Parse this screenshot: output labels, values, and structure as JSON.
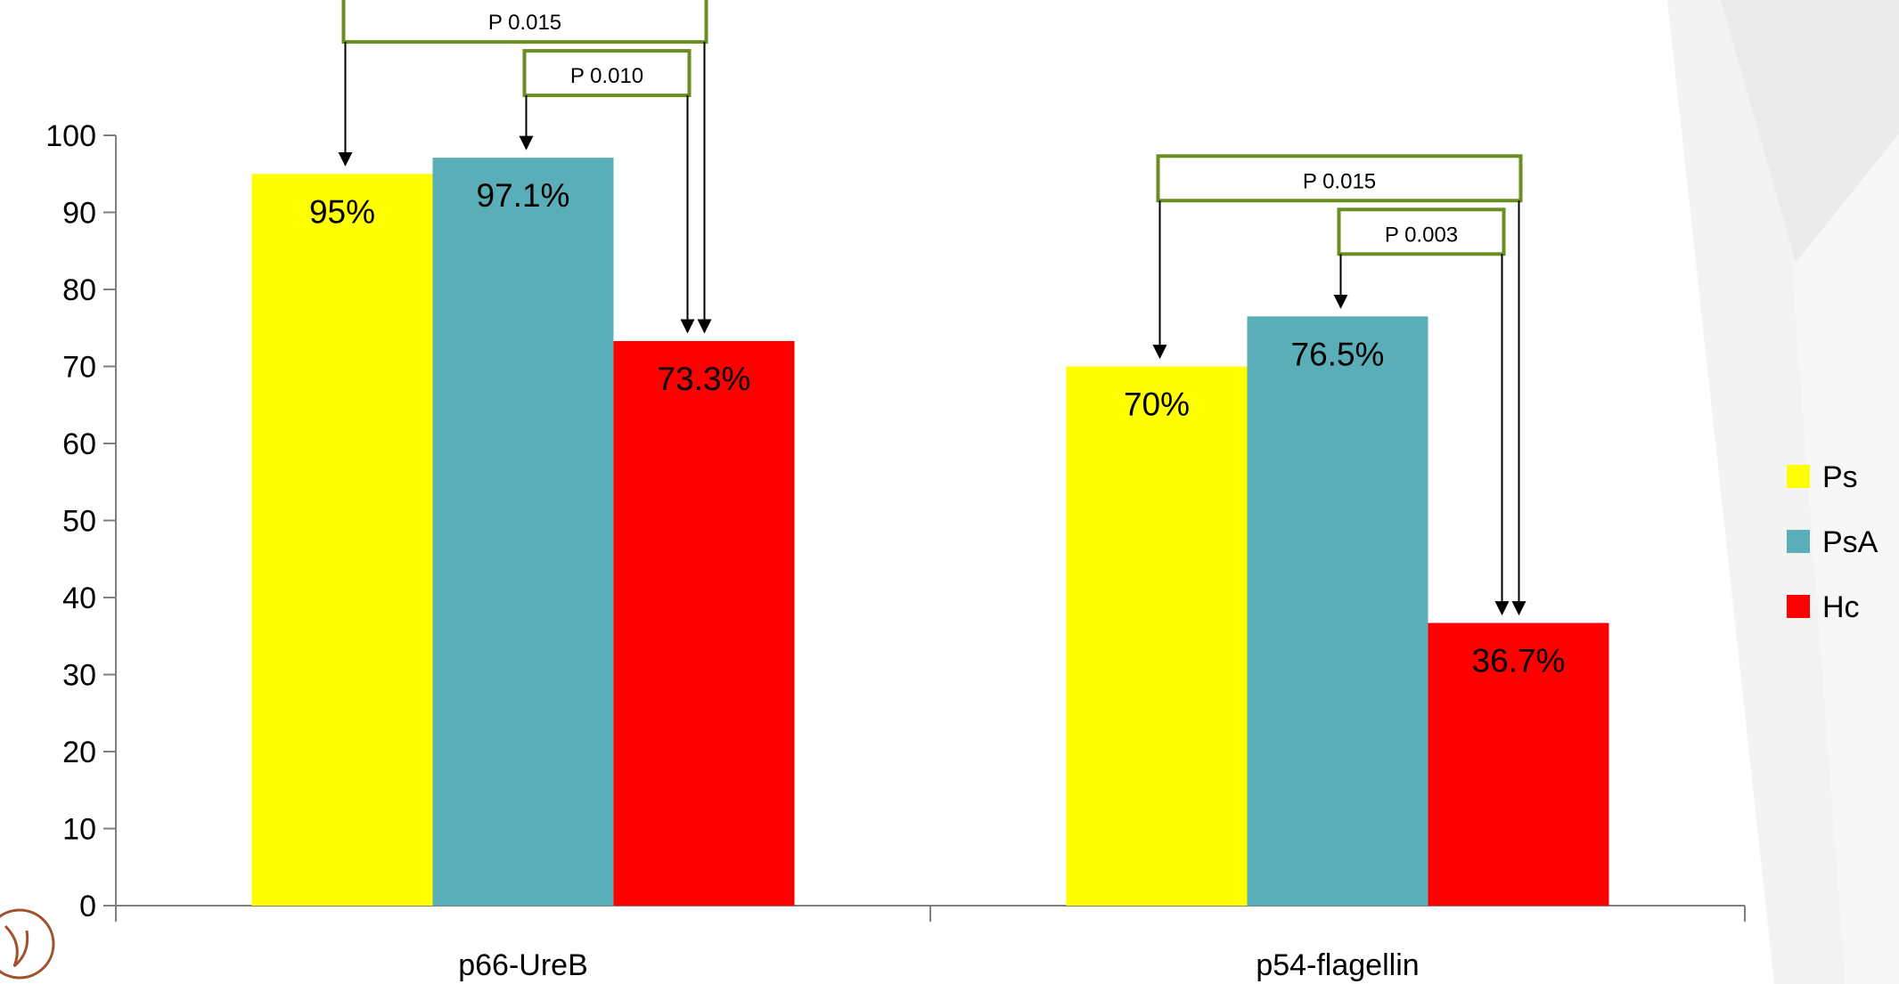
{
  "chart_data": {
    "type": "bar",
    "categories": [
      "p66-UreB",
      "p54-flagellin"
    ],
    "series": [
      {
        "name": "Ps",
        "color": "#ffff00",
        "values": [
          95,
          70
        ],
        "labels": [
          "95%",
          "70%"
        ]
      },
      {
        "name": "PsA",
        "color": "#5aaeb8",
        "values": [
          97.1,
          76.5
        ],
        "labels": [
          "97.1%",
          "76.5%"
        ]
      },
      {
        "name": "Hc",
        "color": "#ff0000",
        "values": [
          73.3,
          36.7
        ],
        "labels": [
          "73.3%",
          "36.7%"
        ]
      }
    ],
    "ylim": [
      0,
      100
    ],
    "yticks": [
      0,
      10,
      20,
      30,
      40,
      50,
      60,
      70,
      80,
      90,
      100
    ],
    "grid": false,
    "legend_position": "right",
    "annotations": [
      {
        "category": 0,
        "from_series": 0,
        "to_series": 2,
        "label": "P 0.015",
        "level": 0
      },
      {
        "category": 0,
        "from_series": 1,
        "to_series": 2,
        "label": "P 0.010",
        "level": 1
      },
      {
        "category": 1,
        "from_series": 0,
        "to_series": 2,
        "label": "P 0.015",
        "level": 0
      },
      {
        "category": 1,
        "from_series": 1,
        "to_series": 2,
        "label": "P 0.003",
        "level": 1
      }
    ],
    "annotation_box_color": "#6b8e23"
  }
}
